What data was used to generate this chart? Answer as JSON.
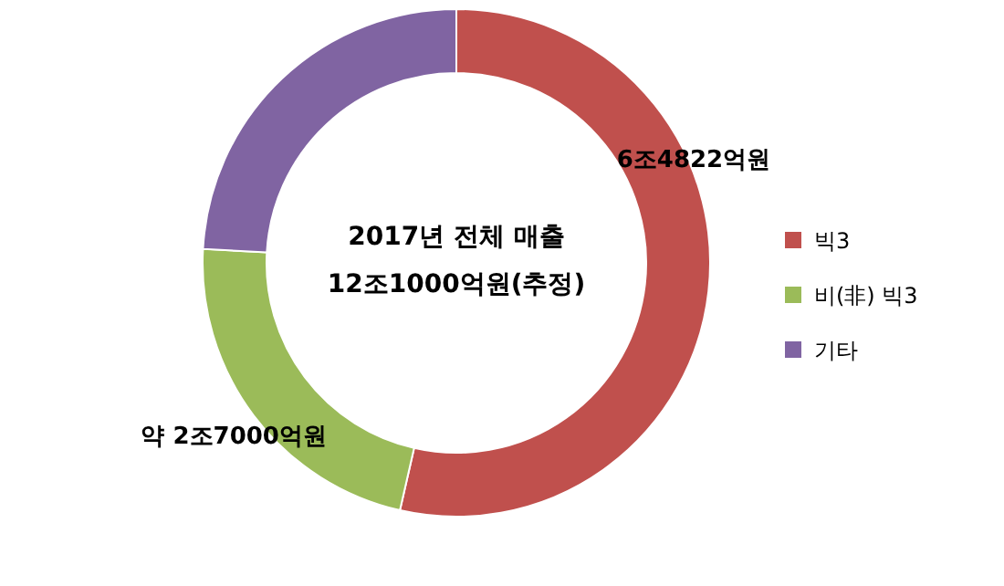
{
  "chart_data": {
    "type": "donut",
    "title": "2017년 전체 매출",
    "subtitle": "12조1000억원(추정)",
    "categories": [
      "빅3",
      "비(非) 빅3",
      "기타"
    ],
    "values": [
      53.57,
      22.31,
      24.12
    ],
    "colors": [
      "#c0504d",
      "#9bbb59",
      "#8064a2"
    ],
    "annotations": [
      "6조4822억원",
      "약 2조7000억원"
    ],
    "legend": "right"
  }
}
